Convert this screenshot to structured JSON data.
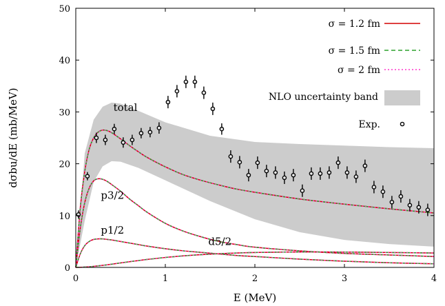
{
  "chart_data": {
    "type": "line",
    "xlabel": "E (MeV)",
    "ylabel": "dσbu/dE (mb/MeV)",
    "xlim": [
      0,
      4
    ],
    "ylim": [
      0,
      50
    ],
    "xticks": [
      "0",
      "1",
      "2",
      "3",
      "4"
    ],
    "yticks": [
      "0",
      "10",
      "20",
      "30",
      "40",
      "50"
    ],
    "grid": false,
    "legend_placement": "top-right",
    "legend": [
      {
        "label": "σ = 1.2 fm",
        "color": "#d40000",
        "style": "solid"
      },
      {
        "label": "σ = 1.5 fm",
        "color": "#2ca02c",
        "style": "dashed"
      },
      {
        "label": "σ = 2 fm",
        "color": "#ff33cc",
        "style": "dotted"
      },
      {
        "label": "NLO uncertainty band",
        "color": "#cccccc",
        "style": "band"
      },
      {
        "label": "Exp.",
        "color": "#000000",
        "style": "points"
      }
    ],
    "annotations": [
      {
        "text": "total",
        "x": 0.42,
        "y": 30.2
      },
      {
        "text": "p3/2",
        "x": 0.28,
        "y": 13.2
      },
      {
        "text": "p1/2",
        "x": 0.28,
        "y": 6.5
      },
      {
        "text": "d5/2",
        "x": 1.48,
        "y": 4.3
      }
    ],
    "curves": {
      "x": [
        0,
        0.05,
        0.1,
        0.15,
        0.2,
        0.25,
        0.3,
        0.35,
        0.4,
        0.5,
        0.6,
        0.7,
        0.8,
        1.0,
        1.2,
        1.4,
        1.6,
        1.8,
        2.0,
        2.5,
        3.0,
        3.5,
        4.0
      ],
      "series": [
        {
          "name": "total",
          "values": [
            0,
            11.5,
            18.5,
            22.8,
            25.0,
            26.1,
            26.5,
            26.4,
            26.0,
            24.8,
            23.5,
            22.3,
            21.2,
            19.4,
            17.9,
            16.8,
            15.9,
            15.1,
            14.5,
            13.2,
            12.2,
            11.3,
            10.5
          ]
        },
        {
          "name": "p3/2",
          "values": [
            0,
            7.5,
            12.5,
            15.3,
            16.7,
            17.1,
            17.0,
            16.6,
            16.0,
            14.7,
            13.2,
            11.9,
            10.6,
            8.5,
            7.0,
            5.9,
            5.0,
            4.4,
            3.9,
            3.2,
            2.7,
            2.4,
            2.1
          ]
        },
        {
          "name": "p1/2",
          "values": [
            0,
            2.6,
            4.2,
            5.0,
            5.4,
            5.5,
            5.5,
            5.4,
            5.3,
            5.0,
            4.7,
            4.4,
            4.1,
            3.6,
            3.2,
            2.9,
            2.6,
            2.3,
            2.1,
            1.6,
            1.2,
            0.9,
            0.7
          ]
        },
        {
          "name": "d5/2",
          "values": [
            0,
            0.02,
            0.06,
            0.12,
            0.2,
            0.3,
            0.4,
            0.5,
            0.62,
            0.86,
            1.1,
            1.32,
            1.54,
            1.92,
            2.22,
            2.46,
            2.64,
            2.78,
            2.88,
            2.98,
            2.96,
            2.88,
            2.78
          ]
        }
      ]
    },
    "band": {
      "x": [
        0,
        0.1,
        0.2,
        0.3,
        0.4,
        0.5,
        0.7,
        1.0,
        1.5,
        2.0,
        2.5,
        3.0,
        3.5,
        4.0
      ],
      "upper": [
        0,
        22,
        28.5,
        31.0,
        31.8,
        31.6,
        30.2,
        28.0,
        25.4,
        24.2,
        23.8,
        23.5,
        23.2,
        23.0
      ],
      "lower": [
        0,
        9,
        16.5,
        19.5,
        20.5,
        20.4,
        19.2,
        16.8,
        12.8,
        9.3,
        6.8,
        5.3,
        4.5,
        4.0
      ]
    },
    "experiment": {
      "x": [
        0.03,
        0.13,
        0.23,
        0.33,
        0.43,
        0.53,
        0.63,
        0.73,
        0.83,
        0.93,
        1.03,
        1.13,
        1.23,
        1.33,
        1.43,
        1.53,
        1.63,
        1.73,
        1.83,
        1.93,
        2.03,
        2.13,
        2.23,
        2.33,
        2.43,
        2.53,
        2.63,
        2.73,
        2.83,
        2.93,
        3.03,
        3.13,
        3.23,
        3.33,
        3.43,
        3.53,
        3.63,
        3.73,
        3.83,
        3.93
      ],
      "y": [
        10.2,
        17.6,
        25.0,
        24.6,
        26.7,
        24.1,
        24.6,
        25.9,
        26.1,
        26.9,
        31.9,
        34.0,
        35.8,
        35.8,
        33.7,
        30.6,
        26.7,
        21.4,
        20.3,
        17.8,
        20.2,
        18.6,
        18.3,
        17.3,
        17.8,
        14.8,
        18.1,
        18.1,
        18.3,
        20.2,
        18.3,
        17.5,
        19.6,
        15.5,
        14.6,
        12.6,
        13.7,
        12.0,
        11.6,
        11.1
      ],
      "err": [
        0.8,
        0.8,
        1.0,
        1.0,
        1.0,
        1.0,
        1.0,
        1.0,
        1.0,
        1.1,
        1.2,
        1.2,
        1.2,
        1.2,
        1.2,
        1.2,
        1.1,
        1.2,
        1.2,
        1.2,
        1.2,
        1.2,
        1.2,
        1.2,
        1.2,
        1.2,
        1.2,
        1.2,
        1.2,
        1.2,
        1.2,
        1.2,
        1.2,
        1.2,
        1.2,
        1.2,
        1.2,
        1.2,
        1.2,
        1.2
      ]
    }
  }
}
